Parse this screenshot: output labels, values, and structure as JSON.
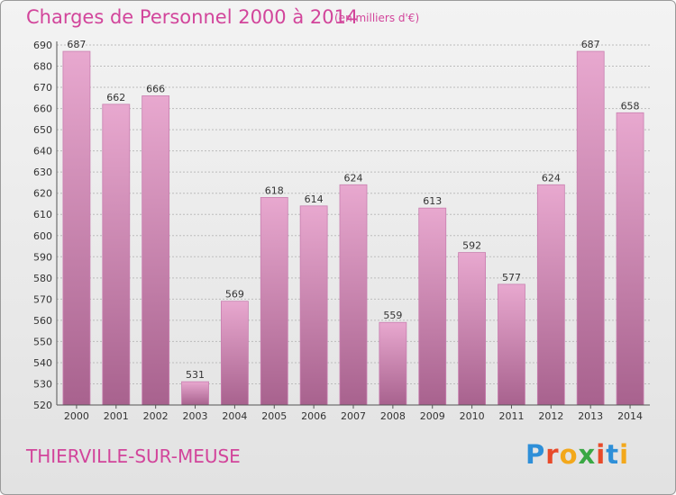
{
  "header": {
    "title": "Charges de Personnel 2000 à 2014",
    "subtitle": "(en milliers d'€)"
  },
  "footer": {
    "place": "THIERVILLE-SUR-MEUSE",
    "logo_text": "Proxiti"
  },
  "colors": {
    "accent": "#d2459b",
    "bar_top": "#e8a8cf",
    "bar_bottom": "#a8628e",
    "logo": [
      "#2e8fd8",
      "#e84a2a",
      "#f3a81b",
      "#3aa844",
      "#e84a2a",
      "#2e8fd8",
      "#f3a81b"
    ]
  },
  "chart_data": {
    "type": "bar",
    "categories": [
      "2000",
      "2001",
      "2002",
      "2003",
      "2004",
      "2005",
      "2006",
      "2007",
      "2008",
      "2009",
      "2010",
      "2011",
      "2012",
      "2013",
      "2014"
    ],
    "values": [
      687,
      662,
      666,
      531,
      569,
      618,
      614,
      624,
      559,
      613,
      592,
      577,
      624,
      687,
      658
    ],
    "ylim": [
      520,
      690
    ],
    "ytick_step": 10,
    "grid": true,
    "xlabel": "",
    "ylabel": ""
  }
}
